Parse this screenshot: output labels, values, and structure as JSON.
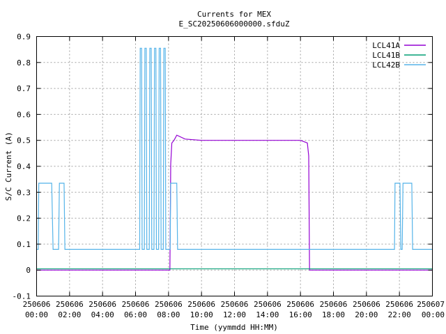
{
  "chart_data": {
    "type": "line",
    "title": "Currents for MEX",
    "subtitle": "E_SC20250606000000.sfduZ",
    "xlabel": "Time (yymmdd HH:MM)",
    "ylabel": "S/C Current (A)",
    "xlim": [
      "2025-06-06T00:00",
      "2025-06-07T00:00"
    ],
    "ylim": [
      -0.1,
      0.9
    ],
    "grid": true,
    "legend_position": "top-right",
    "y_ticks": [
      "-0.1",
      "0",
      "0.1",
      "0.2",
      "0.3",
      "0.4",
      "0.5",
      "0.6",
      "0.7",
      "0.8",
      "0.9"
    ],
    "x_ticks": [
      {
        "date": "250606",
        "time": "00:00"
      },
      {
        "date": "250606",
        "time": "02:00"
      },
      {
        "date": "250606",
        "time": "04:00"
      },
      {
        "date": "250606",
        "time": "06:00"
      },
      {
        "date": "250606",
        "time": "08:00"
      },
      {
        "date": "250606",
        "time": "10:00"
      },
      {
        "date": "250606",
        "time": "12:00"
      },
      {
        "date": "250606",
        "time": "14:00"
      },
      {
        "date": "250606",
        "time": "16:00"
      },
      {
        "date": "250606",
        "time": "18:00"
      },
      {
        "date": "250606",
        "time": "20:00"
      },
      {
        "date": "250606",
        "time": "22:00"
      },
      {
        "date": "250607",
        "time": "00:00"
      }
    ],
    "series": [
      {
        "name": "LCL41A",
        "color": "#9400d3",
        "points": [
          [
            "2025-06-06T00:00",
            0.0
          ],
          [
            "2025-06-06T08:05",
            0.0
          ],
          [
            "2025-06-06T08:08",
            0.41
          ],
          [
            "2025-06-06T08:12",
            0.49
          ],
          [
            "2025-06-06T08:20",
            0.5
          ],
          [
            "2025-06-06T08:30",
            0.52
          ],
          [
            "2025-06-06T09:00",
            0.505
          ],
          [
            "2025-06-06T10:00",
            0.5
          ],
          [
            "2025-06-06T12:00",
            0.5
          ],
          [
            "2025-06-06T14:00",
            0.5
          ],
          [
            "2025-06-06T16:00",
            0.5
          ],
          [
            "2025-06-06T16:25",
            0.49
          ],
          [
            "2025-06-06T16:30",
            0.44
          ],
          [
            "2025-06-06T16:33",
            0.0
          ],
          [
            "2025-06-07T00:00",
            0.0
          ]
        ]
      },
      {
        "name": "LCL41B",
        "color": "#009e73",
        "points": [
          [
            "2025-06-06T00:00",
            0.005
          ],
          [
            "2025-06-06T12:00",
            0.005
          ],
          [
            "2025-06-07T00:00",
            0.005
          ]
        ]
      },
      {
        "name": "LCL42B",
        "color": "#56b4e9",
        "points": [
          [
            "2025-06-06T00:00",
            0.08
          ],
          [
            "2025-06-06T00:06",
            0.08
          ],
          [
            "2025-06-06T00:08",
            0.335
          ],
          [
            "2025-06-06T00:55",
            0.335
          ],
          [
            "2025-06-06T01:00",
            0.08
          ],
          [
            "2025-06-06T01:20",
            0.08
          ],
          [
            "2025-06-06T01:23",
            0.335
          ],
          [
            "2025-06-06T01:40",
            0.335
          ],
          [
            "2025-06-06T01:43",
            0.08
          ],
          [
            "2025-06-06T06:15",
            0.08
          ],
          [
            "2025-06-06T06:17",
            0.855
          ],
          [
            "2025-06-06T06:22",
            0.855
          ],
          [
            "2025-06-06T06:24",
            0.08
          ],
          [
            "2025-06-06T06:32",
            0.08
          ],
          [
            "2025-06-06T06:34",
            0.855
          ],
          [
            "2025-06-06T06:39",
            0.855
          ],
          [
            "2025-06-06T06:41",
            0.08
          ],
          [
            "2025-06-06T06:50",
            0.08
          ],
          [
            "2025-06-06T06:52",
            0.855
          ],
          [
            "2025-06-06T06:57",
            0.855
          ],
          [
            "2025-06-06T06:59",
            0.08
          ],
          [
            "2025-06-06T07:07",
            0.08
          ],
          [
            "2025-06-06T07:09",
            0.855
          ],
          [
            "2025-06-06T07:14",
            0.855
          ],
          [
            "2025-06-06T07:16",
            0.08
          ],
          [
            "2025-06-06T07:24",
            0.08
          ],
          [
            "2025-06-06T07:26",
            0.855
          ],
          [
            "2025-06-06T07:31",
            0.855
          ],
          [
            "2025-06-06T07:33",
            0.08
          ],
          [
            "2025-06-06T07:41",
            0.08
          ],
          [
            "2025-06-06T07:43",
            0.855
          ],
          [
            "2025-06-06T07:48",
            0.855
          ],
          [
            "2025-06-06T07:50",
            0.08
          ],
          [
            "2025-06-06T08:06",
            0.08
          ],
          [
            "2025-06-06T08:08",
            0.335
          ],
          [
            "2025-06-06T08:30",
            0.335
          ],
          [
            "2025-06-06T08:33",
            0.08
          ],
          [
            "2025-06-06T21:42",
            0.08
          ],
          [
            "2025-06-06T21:44",
            0.335
          ],
          [
            "2025-06-06T22:02",
            0.335
          ],
          [
            "2025-06-06T22:05",
            0.08
          ],
          [
            "2025-06-06T22:10",
            0.08
          ],
          [
            "2025-06-06T22:13",
            0.335
          ],
          [
            "2025-06-06T22:45",
            0.335
          ],
          [
            "2025-06-06T22:48",
            0.08
          ],
          [
            "2025-06-07T00:00",
            0.08
          ]
        ]
      }
    ]
  }
}
